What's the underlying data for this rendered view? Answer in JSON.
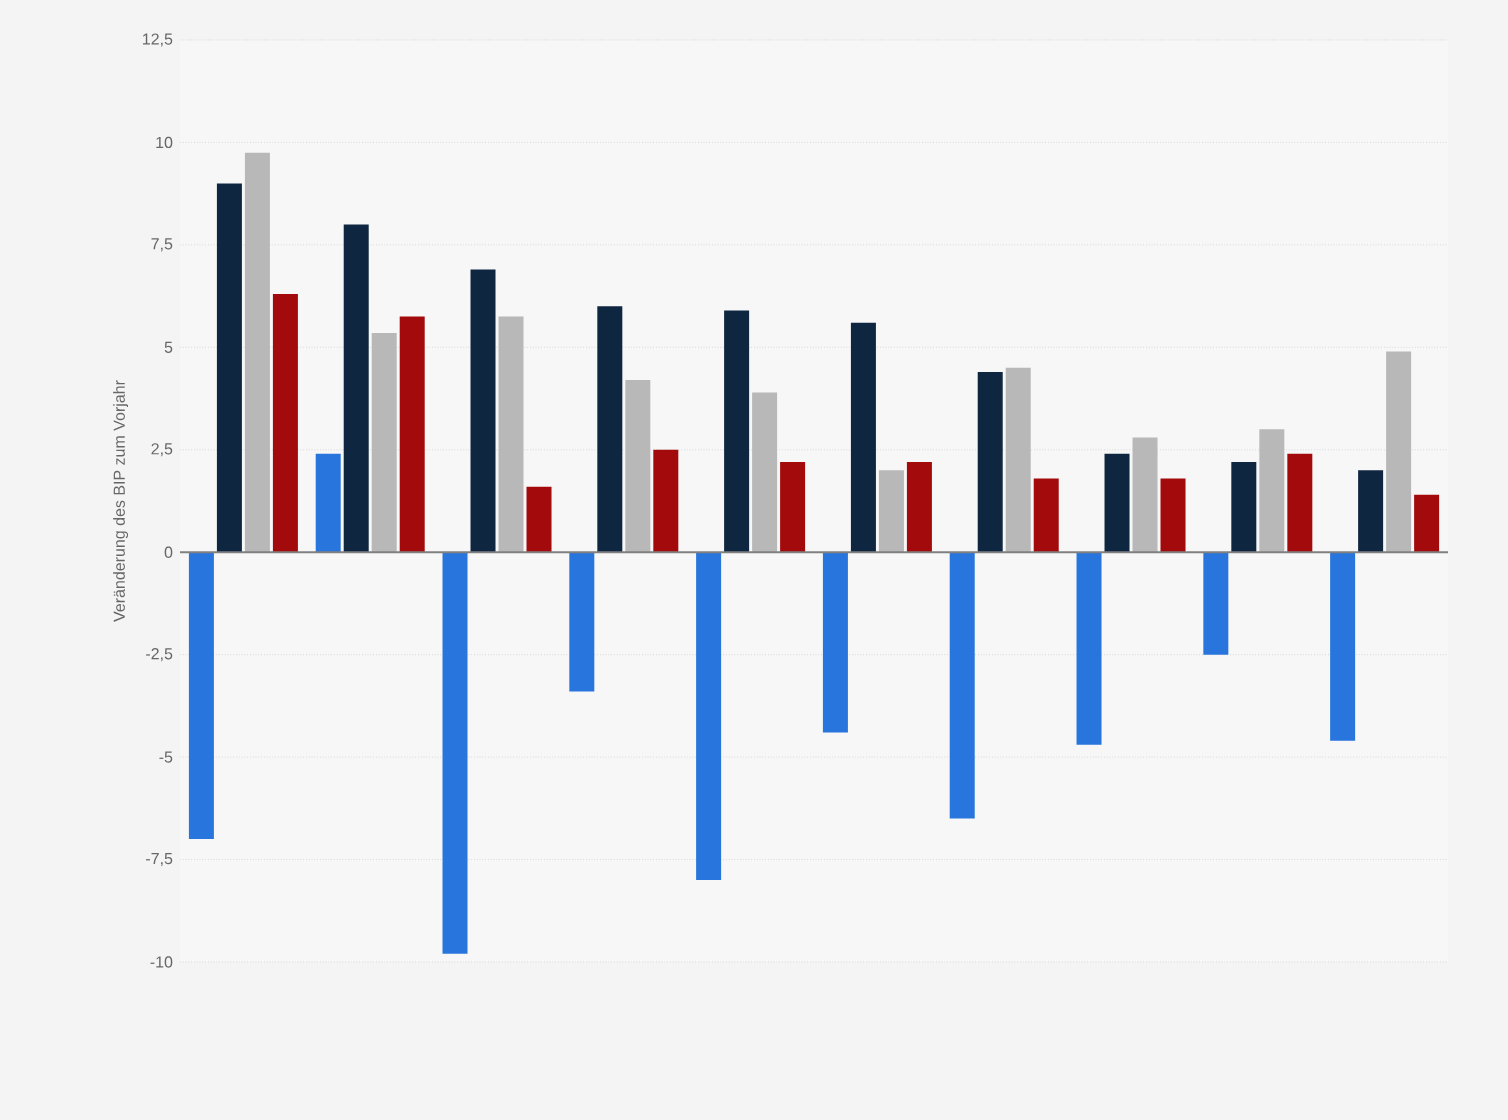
{
  "chart_data": {
    "type": "bar",
    "ylabel": "Veränderung des BIP zum Vorjahr",
    "categories": [
      null,
      null,
      null,
      null,
      null,
      null,
      null,
      null,
      null,
      null
    ],
    "series": [
      {
        "color": "#2876dd",
        "values": [
          -7.0,
          2.4,
          -9.8,
          -3.4,
          -8.0,
          -4.4,
          -6.5,
          -4.7,
          -2.5,
          -4.6
        ]
      },
      {
        "color": "#0f2640",
        "values": [
          9.0,
          8.0,
          6.9,
          6.0,
          5.9,
          5.6,
          4.4,
          2.4,
          2.2,
          2.0
        ]
      },
      {
        "color": "#b8b8b8",
        "values": [
          9.75,
          5.35,
          5.75,
          4.2,
          3.9,
          2.0,
          4.5,
          2.8,
          3.0,
          4.9
        ]
      },
      {
        "color": "#a30a0b",
        "values": [
          6.3,
          5.75,
          1.6,
          2.5,
          2.2,
          2.2,
          1.8,
          1.8,
          2.4,
          1.4
        ]
      }
    ],
    "ylim": [
      -10,
      12.5
    ],
    "yticks": [
      -10,
      {
        "value": -7.5,
        "label": "-7,5"
      },
      -5,
      {
        "value": -2.5,
        "label": "-2,5"
      },
      0,
      {
        "value": 2.5,
        "label": "2,5"
      },
      5,
      {
        "value": 7.5,
        "label": "7,5"
      },
      10,
      {
        "value": 12.5,
        "label": "12,5"
      }
    ],
    "grid": "y",
    "legend": false,
    "tick_labels": "y"
  }
}
